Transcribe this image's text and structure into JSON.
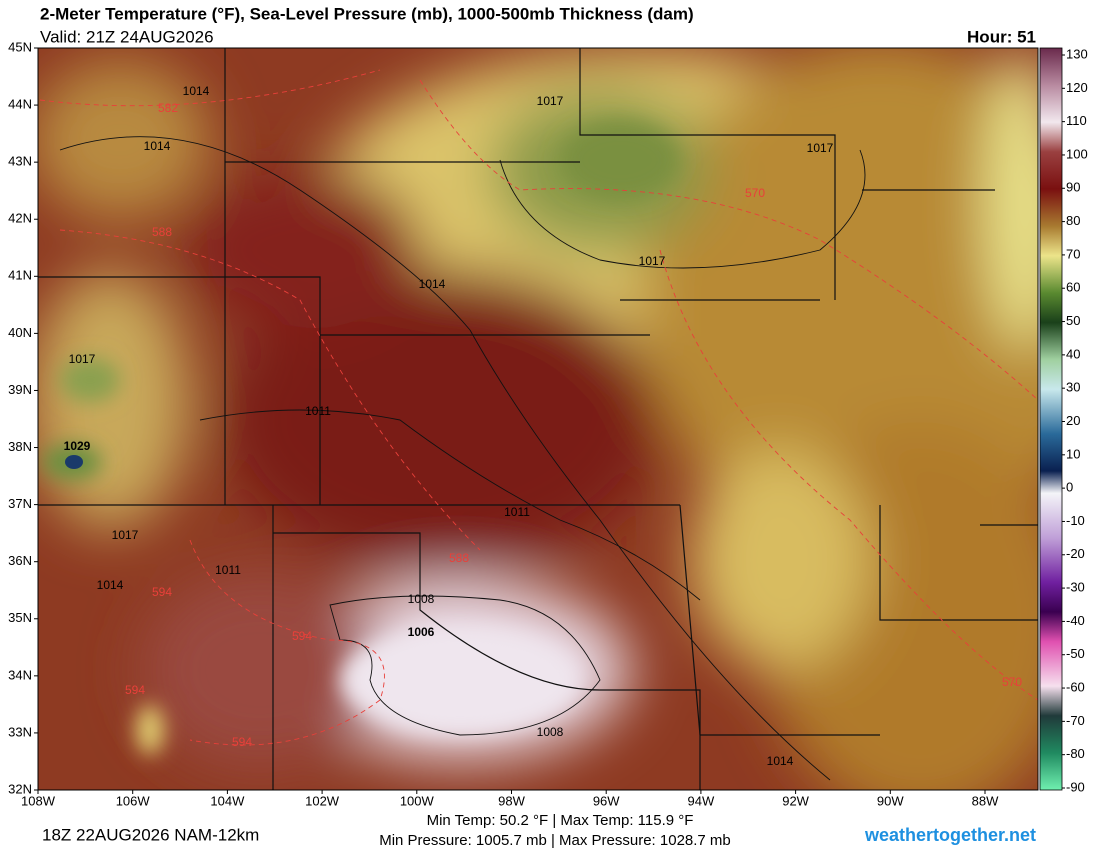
{
  "header": {
    "title": "2-Meter Temperature (°F), Sea-Level Pressure (mb), 1000-500mb Thickness (dam)",
    "valid": "Valid: 21Z 24AUG2026",
    "hour": "Hour: 51"
  },
  "map": {
    "lat_ticks": [
      {
        "value": 45,
        "label": "45N"
      },
      {
        "value": 44,
        "label": "44N"
      },
      {
        "value": 43,
        "label": "43N"
      },
      {
        "value": 42,
        "label": "42N"
      },
      {
        "value": 41,
        "label": "41N"
      },
      {
        "value": 40,
        "label": "40N"
      },
      {
        "value": 39,
        "label": "39N"
      },
      {
        "value": 38,
        "label": "38N"
      },
      {
        "value": 37,
        "label": "37N"
      },
      {
        "value": 36,
        "label": "36N"
      },
      {
        "value": 35,
        "label": "35N"
      },
      {
        "value": 34,
        "label": "34N"
      },
      {
        "value": 33,
        "label": "33N"
      },
      {
        "value": 32,
        "label": "32N"
      }
    ],
    "lon_ticks": [
      {
        "value": -108,
        "label": "108W"
      },
      {
        "value": -106,
        "label": "106W"
      },
      {
        "value": -104,
        "label": "104W"
      },
      {
        "value": -102,
        "label": "102W"
      },
      {
        "value": -100,
        "label": "100W"
      },
      {
        "value": -98,
        "label": "98W"
      },
      {
        "value": -96,
        "label": "96W"
      },
      {
        "value": -94,
        "label": "94W"
      },
      {
        "value": -92,
        "label": "92W"
      },
      {
        "value": -90,
        "label": "90W"
      },
      {
        "value": -88,
        "label": "88W"
      }
    ],
    "pressure_labels": [
      1014,
      1014,
      1017,
      1017,
      1017,
      1014,
      1017,
      1011,
      1029,
      1017,
      1011,
      1014,
      1011,
      1008,
      1006,
      1008,
      1014
    ],
    "thickness_labels": [
      582,
      588,
      570,
      588,
      594,
      594,
      594,
      594,
      570
    ]
  },
  "colorbar": {
    "lim": [
      -90,
      130
    ],
    "ticks": [
      130,
      120,
      110,
      100,
      90,
      80,
      70,
      60,
      50,
      40,
      30,
      20,
      10,
      0,
      -10,
      -20,
      -30,
      -40,
      -50,
      -60,
      -70,
      -80,
      -90
    ]
  },
  "footer": {
    "run": "18Z 22AUG2026 NAM-12km",
    "temp_range": "Min Temp:  50.2 °F | Max Temp: 115.9 °F",
    "pressure_range": "Min Pressure: 1005.7 mb | Max Pressure: 1028.7 mb",
    "site": "weathertogether.net"
  }
}
